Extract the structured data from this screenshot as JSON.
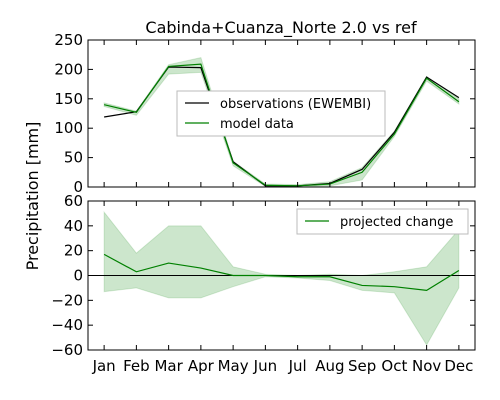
{
  "chart_data": [
    {
      "panel": "top",
      "type": "line",
      "title": "Cabinda+Cuanza_Norte 2.0 vs ref",
      "ylabel": "",
      "categories": [
        "Jan",
        "Feb",
        "Mar",
        "Apr",
        "May",
        "Jun",
        "Jul",
        "Aug",
        "Sep",
        "Oct",
        "Nov",
        "Dec"
      ],
      "ylim": [
        0,
        250
      ],
      "yticks": [
        0,
        50,
        100,
        150,
        200,
        250
      ],
      "legend_position": "center-right",
      "series": [
        {
          "name": "observations (EWEMBI)",
          "color": "#000000",
          "values": [
            119,
            128,
            204,
            203,
            43,
            2,
            2,
            6,
            30,
            93,
            187,
            152
          ]
        },
        {
          "name": "model data",
          "color": "#008000",
          "values": [
            140,
            127,
            205,
            209,
            41,
            3,
            2,
            5,
            25,
            90,
            185,
            145
          ],
          "band_upper": [
            143,
            129,
            208,
            220,
            44,
            5,
            4,
            9,
            33,
            95,
            188,
            150
          ],
          "band_lower": [
            137,
            122,
            192,
            195,
            36,
            1,
            1,
            2,
            12,
            86,
            180,
            141
          ]
        }
      ]
    },
    {
      "panel": "bottom",
      "type": "line",
      "title": "",
      "categories": [
        "Jan",
        "Feb",
        "Mar",
        "Apr",
        "May",
        "Jun",
        "Jul",
        "Aug",
        "Sep",
        "Oct",
        "Nov",
        "Dec"
      ],
      "ylim": [
        -60,
        60
      ],
      "yticks": [
        -60,
        -40,
        -20,
        0,
        20,
        40,
        60
      ],
      "ytick_labels": [
        "−60",
        "−40",
        "−20",
        "0",
        "20",
        "40",
        "60"
      ],
      "legend_position": "top-right",
      "series": [
        {
          "name": "projected change",
          "color": "#008000",
          "values": [
            17,
            3,
            10,
            6,
            0,
            0,
            -1,
            -1,
            -8,
            -9,
            -12,
            4
          ],
          "band_upper": [
            51,
            18,
            40,
            40,
            7,
            1,
            0,
            1,
            0,
            3,
            7,
            37
          ],
          "band_lower": [
            -13,
            -10,
            -18,
            -18,
            -9,
            -1,
            -2,
            -4,
            -12,
            -14,
            -56,
            -10
          ]
        }
      ]
    }
  ],
  "shared_ylabel": "Precipitation [mm]"
}
